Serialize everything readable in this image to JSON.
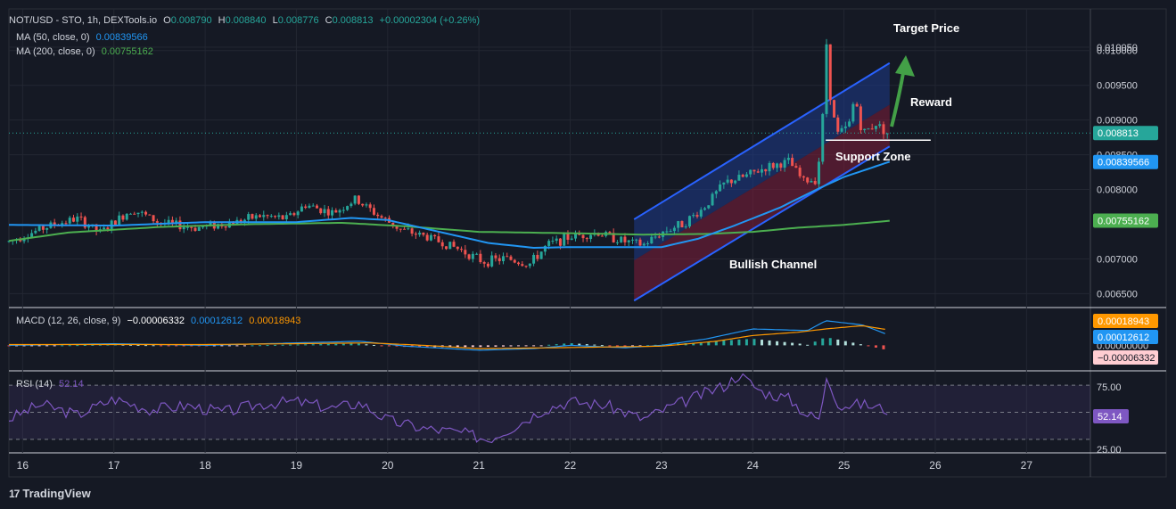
{
  "header": {
    "symbol": "NOT/USD - STO, 1h, DEXTools.io",
    "open_label": "O",
    "open": "0.008790",
    "high_label": "H",
    "high": "0.008840",
    "low_label": "L",
    "low": "0.008776",
    "close_label": "C",
    "close": "0.008813",
    "change": "+0.00002304 (+0.26%)",
    "ma50_label": "MA (50, close, 0)",
    "ma50_value": "0.00839566",
    "ma200_label": "MA (200, close, 0)",
    "ma200_value": "0.00755162",
    "macd_label": "MACD (12, 26, close, 9)",
    "macd_hist": "−0.00006332",
    "macd_line": "0.00012612",
    "macd_signal": "0.00018943",
    "rsi_label": "RSI (14)",
    "rsi_value": "52.14"
  },
  "colors": {
    "background": "#151924",
    "grid": "#232732",
    "text": "#d1d4dc",
    "up": "#26a69a",
    "down": "#ef5350",
    "ma50": "#2196f3",
    "ma200": "#4caf50",
    "macd": "#2196f3",
    "signal": "#ff9800",
    "rsi": "#7e57c2",
    "channel": "#2962ff",
    "channel_fill": "#1e3a8a",
    "channel_lower_fill": "#7f1d3a",
    "arrow": "#43a047"
  },
  "annotations": {
    "target": "Target Price",
    "reward": "Reward",
    "support": "Support Zone",
    "channel": "Bullish Channel"
  },
  "brand": {
    "name": "TradingView",
    "mark": "17"
  },
  "chart_data": {
    "type": "candlestick",
    "x_axis": {
      "ticks": [
        "16",
        "17",
        "18",
        "19",
        "20",
        "21",
        "22",
        "23",
        "24",
        "25",
        "26",
        "27"
      ],
      "range": [
        15.85,
        27.7
      ]
    },
    "price_axis": {
      "ticks": [
        "0.010050",
        "0.010000",
        "0.009500",
        "0.009000",
        "0.008500",
        "0.008000",
        "0.007000",
        "0.006500"
      ],
      "range": [
        0.0063,
        0.0106
      ]
    },
    "current_price": "0.008813",
    "ma50_last": "0.00839566",
    "ma200_last": "0.00755162",
    "price_keypoints": [
      [
        15.85,
        0.00725
      ],
      [
        16.3,
        0.00748
      ],
      [
        16.6,
        0.00758
      ],
      [
        16.85,
        0.00738
      ],
      [
        17.2,
        0.00772
      ],
      [
        17.5,
        0.00752
      ],
      [
        17.9,
        0.00745
      ],
      [
        18.3,
        0.00752
      ],
      [
        18.6,
        0.00762
      ],
      [
        18.9,
        0.00758
      ],
      [
        19.1,
        0.00778
      ],
      [
        19.4,
        0.00766
      ],
      [
        19.65,
        0.00786
      ],
      [
        19.9,
        0.00762
      ],
      [
        20.15,
        0.00742
      ],
      [
        20.45,
        0.00731
      ],
      [
        20.8,
        0.00713
      ],
      [
        21.05,
        0.00696
      ],
      [
        21.3,
        0.00701
      ],
      [
        21.55,
        0.00692
      ],
      [
        21.75,
        0.0072
      ],
      [
        22.0,
        0.00732
      ],
      [
        22.3,
        0.00738
      ],
      [
        22.6,
        0.00725
      ],
      [
        22.8,
        0.0072
      ],
      [
        23.0,
        0.00738
      ],
      [
        23.25,
        0.00752
      ],
      [
        23.45,
        0.00772
      ],
      [
        23.7,
        0.0081
      ],
      [
        23.9,
        0.00818
      ],
      [
        24.15,
        0.00832
      ],
      [
        24.4,
        0.0084
      ],
      [
        24.55,
        0.00812
      ],
      [
        24.7,
        0.00815
      ],
      [
        24.76,
        0.0088
      ],
      [
        24.8,
        0.01025
      ],
      [
        24.86,
        0.00918
      ],
      [
        24.93,
        0.0088
      ],
      [
        25.05,
        0.0089
      ],
      [
        25.12,
        0.00935
      ],
      [
        25.2,
        0.0088
      ],
      [
        25.35,
        0.00895
      ],
      [
        25.48,
        0.00881
      ]
    ],
    "ma50_keypoints": [
      [
        15.85,
        0.00749
      ],
      [
        17,
        0.00748
      ],
      [
        18,
        0.00753
      ],
      [
        19,
        0.00753
      ],
      [
        19.6,
        0.00759
      ],
      [
        20,
        0.00756
      ],
      [
        20.6,
        0.00738
      ],
      [
        21.1,
        0.00723
      ],
      [
        21.6,
        0.00716
      ],
      [
        22,
        0.00717
      ],
      [
        22.5,
        0.00717
      ],
      [
        23,
        0.00717
      ],
      [
        23.4,
        0.00729
      ],
      [
        23.8,
        0.00748
      ],
      [
        24.3,
        0.00774
      ],
      [
        24.7,
        0.008
      ],
      [
        25.0,
        0.00818
      ],
      [
        25.5,
        0.0084
      ]
    ],
    "ma200_keypoints": [
      [
        15.85,
        0.00726
      ],
      [
        16.5,
        0.00738
      ],
      [
        17.5,
        0.00746
      ],
      [
        18.5,
        0.0075
      ],
      [
        19.5,
        0.00752
      ],
      [
        20.2,
        0.00747
      ],
      [
        21,
        0.00739
      ],
      [
        22,
        0.00737
      ],
      [
        22.8,
        0.00735
      ],
      [
        23.5,
        0.00736
      ],
      [
        24,
        0.00739
      ],
      [
        24.5,
        0.00745
      ],
      [
        25,
        0.00749
      ],
      [
        25.5,
        0.00755
      ]
    ],
    "channel": {
      "upper": [
        [
          22.7,
          0.00757
        ],
        [
          25.5,
          0.00982
        ]
      ],
      "lower": [
        [
          22.7,
          0.0064
        ],
        [
          25.5,
          0.00862
        ]
      ],
      "mid": [
        [
          22.7,
          0.00698
        ],
        [
          25.5,
          0.00922
        ]
      ]
    },
    "support_line": {
      "x": [
        24.8,
        25.95
      ],
      "y": 0.00871
    },
    "macd": {
      "ticks": [
        "0.00000000"
      ],
      "range": [
        -0.0003,
        0.00045
      ],
      "macd_keypoints": [
        [
          15.85,
          0.0
        ],
        [
          17,
          2e-05
        ],
        [
          18,
          0.0
        ],
        [
          19,
          3e-05
        ],
        [
          19.7,
          5e-05
        ],
        [
          20.2,
          -1e-05
        ],
        [
          21,
          -6e-05
        ],
        [
          21.6,
          -4e-05
        ],
        [
          22,
          0.0
        ],
        [
          22.6,
          -3e-05
        ],
        [
          23,
          0.0
        ],
        [
          23.5,
          8e-05
        ],
        [
          24,
          0.0002
        ],
        [
          24.6,
          0.00018
        ],
        [
          24.8,
          0.0003
        ],
        [
          25.2,
          0.00025
        ],
        [
          25.48,
          0.00013
        ]
      ],
      "signal_keypoints": [
        [
          15.85,
          1e-05
        ],
        [
          17,
          1e-05
        ],
        [
          18,
          1e-05
        ],
        [
          19,
          2e-05
        ],
        [
          19.8,
          3e-05
        ],
        [
          20.4,
          0.0
        ],
        [
          21,
          -4e-05
        ],
        [
          21.8,
          -3e-05
        ],
        [
          22.4,
          -2e-05
        ],
        [
          23,
          -1e-05
        ],
        [
          23.6,
          5e-05
        ],
        [
          24,
          0.00012
        ],
        [
          24.5,
          0.00016
        ],
        [
          24.8,
          0.0002
        ],
        [
          25.2,
          0.00024
        ],
        [
          25.48,
          0.00019
        ]
      ]
    },
    "rsi": {
      "ticks": [
        "75.00",
        "25.00"
      ],
      "range": [
        20,
        80
      ],
      "band": [
        30,
        70
      ],
      "mid": 50,
      "keypoints": [
        [
          15.85,
          45
        ],
        [
          16.2,
          56
        ],
        [
          16.6,
          48
        ],
        [
          17,
          60
        ],
        [
          17.4,
          52
        ],
        [
          17.8,
          55
        ],
        [
          18.2,
          50
        ],
        [
          18.6,
          56
        ],
        [
          19,
          58
        ],
        [
          19.4,
          53
        ],
        [
          19.7,
          57
        ],
        [
          20,
          44
        ],
        [
          20.4,
          38
        ],
        [
          20.8,
          35
        ],
        [
          21.1,
          30
        ],
        [
          21.4,
          40
        ],
        [
          21.7,
          52
        ],
        [
          22,
          58
        ],
        [
          22.4,
          55
        ],
        [
          22.8,
          45
        ],
        [
          23.1,
          54
        ],
        [
          23.4,
          62
        ],
        [
          23.7,
          70
        ],
        [
          23.85,
          78
        ],
        [
          24.1,
          65
        ],
        [
          24.4,
          60
        ],
        [
          24.6,
          48
        ],
        [
          24.75,
          45
        ],
        [
          24.8,
          78
        ],
        [
          24.95,
          55
        ],
        [
          25.2,
          56
        ],
        [
          25.48,
          52
        ]
      ]
    }
  }
}
